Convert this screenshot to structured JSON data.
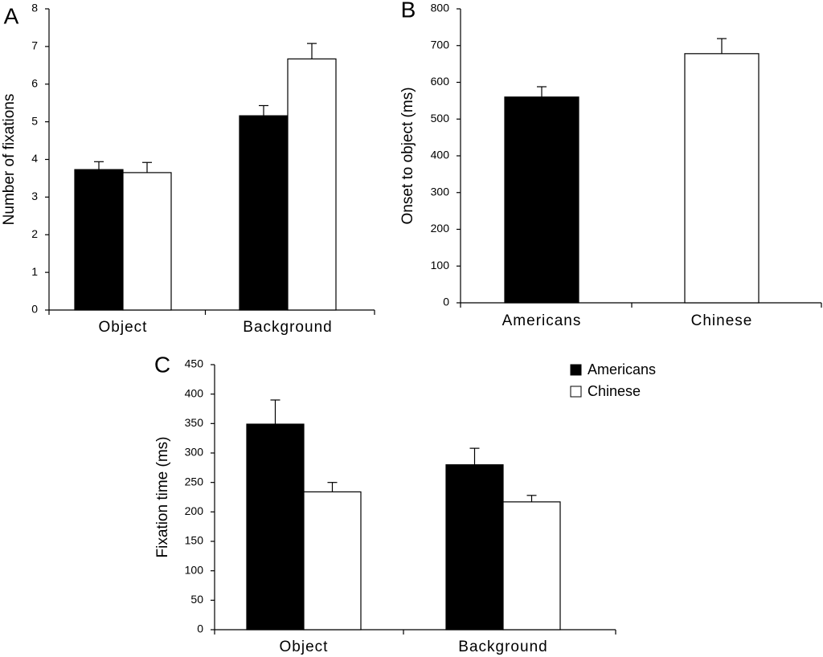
{
  "chart_data": [
    {
      "panel": "A",
      "type": "bar",
      "ylabel": "Number of fixations",
      "categories": [
        "Object",
        "Background"
      ],
      "series": [
        {
          "color": "#000000",
          "values": [
            3.73,
            5.16
          ],
          "errors": [
            0.21,
            0.27
          ]
        },
        {
          "color": "#ffffff",
          "values": [
            3.65,
            6.67
          ],
          "errors": [
            0.27,
            0.41
          ]
        }
      ],
      "ylim": [
        0,
        8
      ],
      "yticks": [
        0,
        1,
        2,
        3,
        4,
        5,
        6,
        7,
        8
      ]
    },
    {
      "panel": "B",
      "type": "bar",
      "ylabel": "Onset to object (ms)",
      "categories": [
        "Americans",
        "Chinese"
      ],
      "series": [
        {
          "colors": [
            "#000000",
            "#ffffff"
          ],
          "values": [
            560,
            678
          ],
          "errors": [
            28,
            41
          ]
        }
      ],
      "ylim": [
        0,
        800
      ],
      "yticks": [
        0,
        100,
        200,
        300,
        400,
        500,
        600,
        700,
        800
      ]
    },
    {
      "panel": "C",
      "type": "bar",
      "ylabel": "Fixation time (ms)",
      "categories": [
        "Object",
        "Background"
      ],
      "series": [
        {
          "name": "Americans",
          "color": "#000000",
          "values": [
            349,
            280
          ],
          "errors": [
            41,
            28
          ]
        },
        {
          "name": "Chinese",
          "color": "#ffffff",
          "values": [
            234,
            217
          ],
          "errors": [
            16,
            11
          ]
        }
      ],
      "ylim": [
        0,
        450
      ],
      "yticks": [
        0,
        50,
        100,
        150,
        200,
        250,
        300,
        350,
        400,
        450
      ],
      "legend": "upper right"
    }
  ]
}
